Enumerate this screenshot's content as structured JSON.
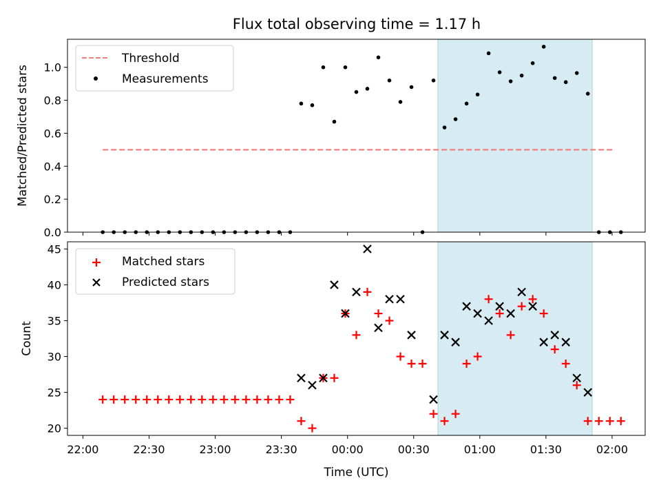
{
  "title": "Flux total observing time = 1.17 h",
  "colors": {
    "threshold": "#f08080",
    "measurement": "#000000",
    "matched": "#ff0000",
    "predicted": "#000000",
    "shade": "#add8e6"
  },
  "chart_data": [
    {
      "type": "scatter",
      "ylabel": "Matched/Predicted stars",
      "xlabel": "",
      "xlim": [
        "21:53",
        "02:15"
      ],
      "ylim": [
        0,
        1.17
      ],
      "y_ticks": [
        "0.0",
        "0.2",
        "0.4",
        "0.6",
        "0.8",
        "1.0"
      ],
      "y_tick_values": [
        0,
        0.2,
        0.4,
        0.6,
        0.8,
        1.0
      ],
      "shaded_region": {
        "x_start": "00:41",
        "x_end": "01:51"
      },
      "legend": {
        "position": "top-left",
        "entries": [
          "Threshold",
          "Measurements"
        ]
      },
      "series": [
        {
          "name": "Threshold",
          "kind": "line-dashed",
          "x": [
            "22:09",
            "02:01"
          ],
          "y": [
            0.5,
            0.5
          ]
        },
        {
          "name": "Measurements",
          "kind": "dots",
          "x": [
            "22:09",
            "22:14",
            "22:19",
            "22:24",
            "22:29",
            "22:34",
            "22:39",
            "22:44",
            "22:49",
            "22:54",
            "22:59",
            "23:04",
            "23:09",
            "23:14",
            "23:19",
            "23:24",
            "23:29",
            "23:34",
            "23:39",
            "23:44",
            "23:49",
            "23:54",
            "23:59",
            "00:04",
            "00:09",
            "00:14",
            "00:19",
            "00:24",
            "00:29",
            "00:34",
            "00:39",
            "00:44",
            "00:49",
            "00:54",
            "00:59",
            "01:04",
            "01:09",
            "01:14",
            "01:19",
            "01:24",
            "01:29",
            "01:34",
            "01:39",
            "01:44",
            "01:49",
            "01:54",
            "01:59",
            "02:04"
          ],
          "y": [
            0,
            0,
            0,
            0,
            0,
            0,
            0,
            0,
            0,
            0,
            0,
            0,
            0,
            0,
            0,
            0,
            0,
            0,
            0.78,
            0.77,
            1.0,
            0.67,
            1.0,
            0.85,
            0.87,
            1.06,
            0.92,
            0.79,
            0.88,
            0,
            0.92,
            0.635,
            0.685,
            0.78,
            0.835,
            1.085,
            0.97,
            0.915,
            0.95,
            1.025,
            1.125,
            0.935,
            0.91,
            0.965,
            0.84,
            0,
            0,
            0
          ]
        }
      ]
    },
    {
      "type": "scatter",
      "ylabel": "Count",
      "xlabel": "Time (UTC)",
      "xlim": [
        "21:53",
        "02:15"
      ],
      "ylim": [
        19,
        46
      ],
      "x_ticks": [
        "22:00",
        "22:30",
        "23:00",
        "23:30",
        "00:00",
        "00:30",
        "01:00",
        "01:30",
        "02:00"
      ],
      "y_ticks": [
        "20",
        "25",
        "30",
        "35",
        "40",
        "45"
      ],
      "y_tick_values": [
        20,
        25,
        30,
        35,
        40,
        45
      ],
      "shaded_region": {
        "x_start": "00:41",
        "x_end": "01:51"
      },
      "legend": {
        "position": "top-left",
        "entries": [
          "Matched stars",
          "Predicted stars"
        ]
      },
      "series": [
        {
          "name": "Matched stars",
          "kind": "plus",
          "x": [
            "22:09",
            "22:14",
            "22:19",
            "22:24",
            "22:29",
            "22:34",
            "22:39",
            "22:44",
            "22:49",
            "22:54",
            "22:59",
            "23:04",
            "23:09",
            "23:14",
            "23:19",
            "23:24",
            "23:29",
            "23:34",
            "23:39",
            "23:44",
            "23:49",
            "23:54",
            "23:59",
            "00:04",
            "00:09",
            "00:14",
            "00:19",
            "00:24",
            "00:29",
            "00:34",
            "00:39",
            "00:44",
            "00:49",
            "00:54",
            "00:59",
            "01:04",
            "01:09",
            "01:14",
            "01:19",
            "01:24",
            "01:29",
            "01:34",
            "01:39",
            "01:44",
            "01:49",
            "01:54",
            "01:59",
            "02:04"
          ],
          "y": [
            24,
            24,
            24,
            24,
            24,
            24,
            24,
            24,
            24,
            24,
            24,
            24,
            24,
            24,
            24,
            24,
            24,
            24,
            21,
            20,
            27,
            27,
            36,
            33,
            39,
            36,
            35,
            30,
            29,
            29,
            22,
            21,
            22,
            29,
            30,
            38,
            36,
            33,
            37,
            38,
            36,
            31,
            29,
            26,
            21,
            21,
            21,
            21
          ]
        },
        {
          "name": "Predicted stars",
          "kind": "x",
          "x": [
            "23:39",
            "23:44",
            "23:49",
            "23:54",
            "23:59",
            "00:04",
            "00:09",
            "00:14",
            "00:19",
            "00:24",
            "00:29",
            "00:39",
            "00:44",
            "00:49",
            "00:54",
            "00:59",
            "01:04",
            "01:09",
            "01:14",
            "01:19",
            "01:24",
            "01:29",
            "01:34",
            "01:39",
            "01:44",
            "01:49"
          ],
          "y": [
            27,
            26,
            27,
            40,
            36,
            39,
            45,
            34,
            38,
            38,
            33,
            24,
            33,
            32,
            37,
            36,
            35,
            37,
            36,
            39,
            37,
            32,
            33,
            32,
            27,
            25
          ]
        }
      ]
    }
  ]
}
